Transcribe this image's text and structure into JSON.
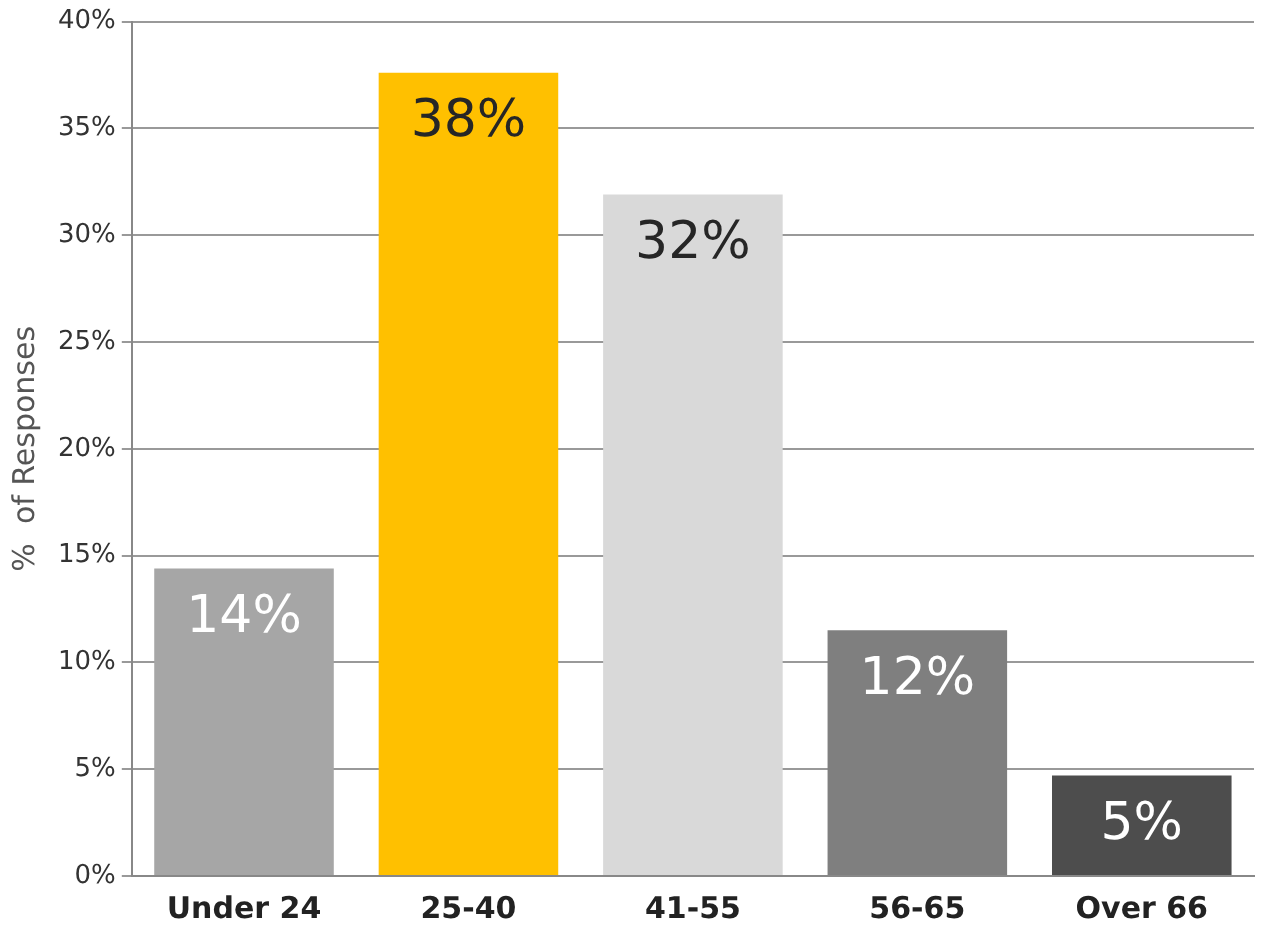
{
  "chart_data": {
    "type": "bar",
    "ylabel": "%  of Responses",
    "categories": [
      "Under 24",
      "25-40",
      "41-55",
      "56-65",
      "Over 66"
    ],
    "values": [
      14.4,
      37.6,
      31.9,
      11.5,
      4.7
    ],
    "colors": [
      "#a6a6a6",
      "#ffc000",
      "#d9d9d9",
      "#7f7f7f",
      "#4d4d4d"
    ],
    "value_labels": [
      "14%",
      "38%",
      "32%",
      "12%",
      "5%"
    ],
    "ylim": [
      0,
      40
    ],
    "yticks": [
      {
        "value": 0,
        "label": "0%"
      },
      {
        "value": 5,
        "label": "5%"
      },
      {
        "value": 10,
        "label": "10%"
      },
      {
        "value": 15,
        "label": "15%"
      },
      {
        "value": 20,
        "label": "20%"
      },
      {
        "value": 25,
        "label": "25%"
      },
      {
        "value": 30,
        "label": "30%"
      },
      {
        "value": 35,
        "label": "35%"
      },
      {
        "value": 40,
        "label": "40%"
      }
    ],
    "grid": "y"
  }
}
